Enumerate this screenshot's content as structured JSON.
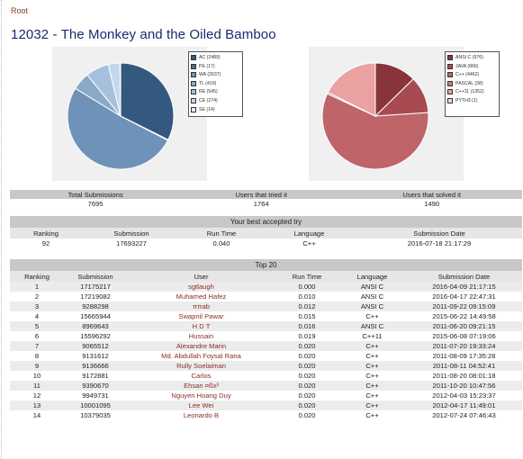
{
  "breadcrumb": {
    "root": "Root"
  },
  "title": "12032 - The Monkey and the Oiled Bamboo",
  "chart_data": [
    {
      "type": "pie",
      "legend_placement": "right",
      "categories": [
        "AC (2489)",
        "PE (17)",
        "WA (3937)",
        "TL (419)",
        "RE (545)",
        "CE (274)",
        "SE (14)"
      ],
      "values": [
        2489,
        17,
        3937,
        419,
        545,
        274,
        14
      ],
      "colors": [
        "#34597f",
        "#4a6e94",
        "#6f93b8",
        "#8aa9c8",
        "#a6c1dc",
        "#c3d8ec",
        "#e6f0fa"
      ]
    },
    {
      "type": "pie",
      "legend_placement": "right",
      "categories": [
        "ANSI C (976)",
        "JAVA (866)",
        "C++ (4462)",
        "PASCAL (38)",
        "C++11 (1352)",
        "PYTH3 (1)"
      ],
      "values": [
        976,
        866,
        4462,
        38,
        1352,
        1
      ],
      "colors": [
        "#88343a",
        "#a84a52",
        "#bf6468",
        "#cf7a7e",
        "#eba0a2",
        "#f7d0d2"
      ]
    }
  ],
  "stats": {
    "headers": [
      "Total Submissions",
      "Users that tried it",
      "Users that solved it"
    ],
    "values": [
      "7695",
      "1764",
      "1490"
    ]
  },
  "best": {
    "caption": "Your best accepted try",
    "headers": [
      "Ranking",
      "Submission",
      "Run Time",
      "Language",
      "Submission Date"
    ],
    "row": [
      "92",
      "17693227",
      "0.040",
      "C++",
      "2016-07-18 21:17:29"
    ]
  },
  "top": {
    "caption": "Top 20",
    "headers": [
      "Ranking",
      "Submission",
      "User",
      "Run Time",
      "Language",
      "Submission Date"
    ],
    "rows": [
      [
        "1",
        "17175217",
        "sgtlaugh",
        "0.000",
        "ANSI C",
        "2016-04-09 21:17:15"
      ],
      [
        "2",
        "17219082",
        "Muhamed Hafez",
        "0.010",
        "ANSI C",
        "2016-04-17 22:47:31"
      ],
      [
        "3",
        "9288298",
        "ππab",
        "0.012",
        "ANSI C",
        "2011-09-22 09:15:09"
      ],
      [
        "4",
        "15665944",
        "Swapnil Pawar",
        "0.015",
        "C++",
        "2015-06-22 14:49:58"
      ],
      [
        "5",
        "8969643",
        "H D T",
        "0.016",
        "ANSI C",
        "2011-06-20 09:21:15"
      ],
      [
        "6",
        "15596292",
        "Hussain",
        "0.019",
        "C++11",
        "2015-06-08 07:19:06"
      ],
      [
        "7",
        "9065512",
        "Alexandre Marin",
        "0.020",
        "C++",
        "2011-07-20 19:33:24"
      ],
      [
        "8",
        "9131612",
        "Md. Abdullah Foysal Rana",
        "0.020",
        "C++",
        "2011-08-09 17:35:28"
      ],
      [
        "9",
        "9136666",
        "Rully Soelaiman",
        "0.020",
        "C++",
        "2011-08-11 04:52:41"
      ],
      [
        "10",
        "9172881",
        "Carlos",
        "0.020",
        "C++",
        "2011-08-20 08:01:18"
      ],
      [
        "11",
        "9390670",
        "Ehsan ¤ßx³",
        "0.020",
        "C++",
        "2011-10-20 10:47:56"
      ],
      [
        "12",
        "9949731",
        "Nguyen Hoang Duy",
        "0.020",
        "C++",
        "2012-04-03 15:23:37"
      ],
      [
        "13",
        "10001095",
        "Lee Wei",
        "0.020",
        "C++",
        "2012-04-17 11:49:01"
      ],
      [
        "14",
        "10379035",
        "Leonardo B",
        "0.020",
        "C++",
        "2012-07-24 07:46:43"
      ]
    ]
  }
}
